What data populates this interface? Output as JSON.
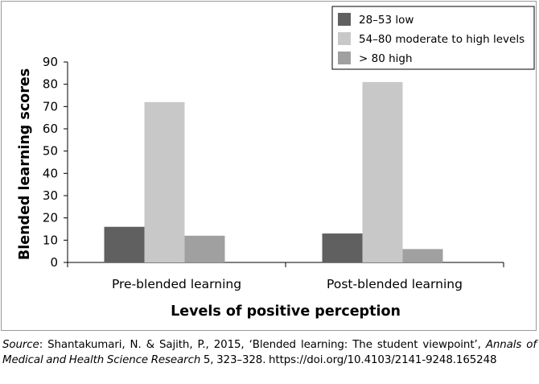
{
  "chart_data": {
    "type": "bar",
    "title": "",
    "xlabel": "Levels of positive perception",
    "ylabel": "Blended learning scores",
    "ylim": [
      0,
      90
    ],
    "yticks": [
      0,
      10,
      20,
      30,
      40,
      50,
      60,
      70,
      80,
      90
    ],
    "grid": false,
    "legend_position": "top-right",
    "categories": [
      "Pre-blended learning",
      "Post-blended learning"
    ],
    "series": [
      {
        "name": "28–53 low",
        "values": [
          16,
          13
        ],
        "color": "#606060"
      },
      {
        "name": "54–80 moderate to high levels",
        "values": [
          72,
          81
        ],
        "color": "#c8c8c8"
      },
      {
        "name": "> 80 high",
        "values": [
          12,
          6
        ],
        "color": "#a0a0a0"
      }
    ]
  },
  "caption": {
    "source_label": "Source",
    "source_text": ": Shantakumari, N. & Sajith, P., 2015, ‘Blended learning: The student viewpoint’, ",
    "journal": "Annals of Medical and Health Science Research",
    "citation_rest": " 5, 323–328. https://doi.org/10.4103/2141-9248.165248"
  }
}
